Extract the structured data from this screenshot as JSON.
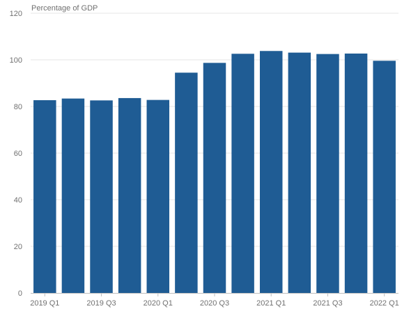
{
  "chart_data": {
    "type": "bar",
    "title": "",
    "ylabel": "Percentage of GDP",
    "xlabel": "",
    "ylim": [
      0,
      120
    ],
    "yticks": [
      0,
      20,
      40,
      60,
      80,
      100,
      120
    ],
    "grid": true,
    "bar_color": "#1f5c94",
    "categories": [
      "2019 Q1",
      "2019 Q2",
      "2019 Q3",
      "2019 Q4",
      "2020 Q1",
      "2020 Q2",
      "2020 Q3",
      "2020 Q4",
      "2021 Q1",
      "2021 Q2",
      "2021 Q3",
      "2021 Q4",
      "2022 Q1"
    ],
    "x_tick_labels_shown": [
      "2019 Q1",
      "2019 Q3",
      "2020 Q1",
      "2020 Q3",
      "2021 Q1",
      "2021 Q3",
      "2022 Q1"
    ],
    "values": [
      82.7,
      83.4,
      82.6,
      83.6,
      82.8,
      94.5,
      98.7,
      102.6,
      103.8,
      103.1,
      102.5,
      102.7,
      99.6
    ]
  }
}
